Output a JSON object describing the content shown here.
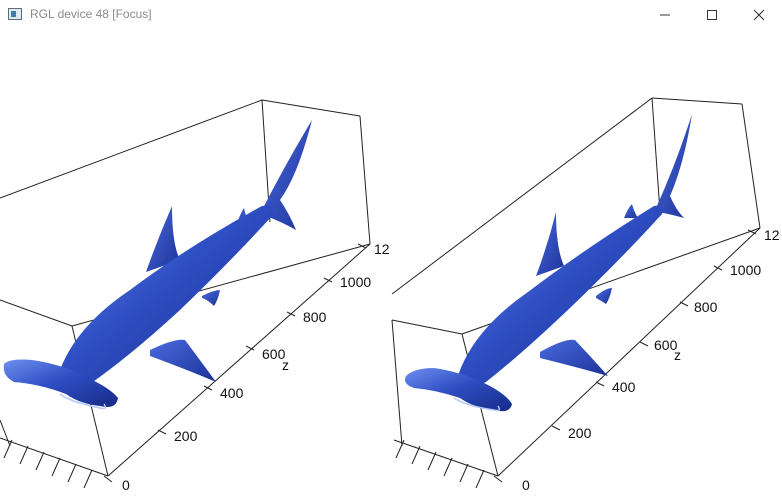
{
  "window": {
    "title": "RGL device 48 [Focus]"
  },
  "controls": {
    "minimize_icon": "minimize-icon",
    "maximize_icon": "maximize-icon",
    "close_icon": "close-icon"
  },
  "panels": [
    {
      "axis_label": "z",
      "ticks": [
        "0",
        "200",
        "400",
        "600",
        "800",
        "1000",
        "12"
      ]
    },
    {
      "axis_label": "z",
      "ticks": [
        "0",
        "200",
        "400",
        "600",
        "800",
        "1000",
        "12"
      ]
    }
  ],
  "colors": {
    "shark": "#2f4fc4",
    "shark_dark": "#162a88",
    "shark_light": "#6f8ff0",
    "box": "#222222"
  }
}
